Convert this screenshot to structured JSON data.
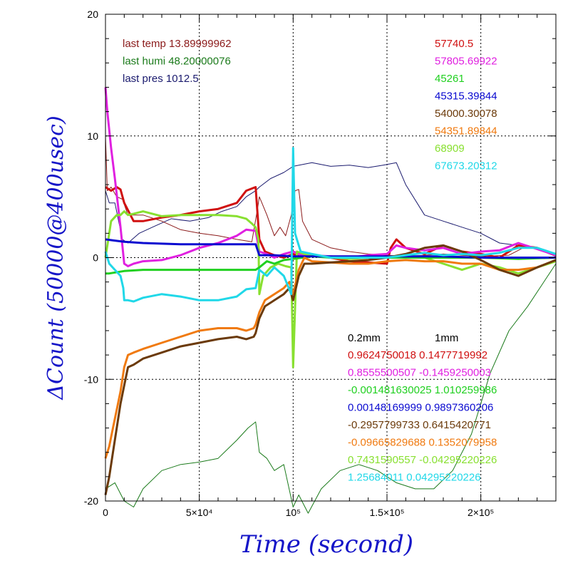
{
  "chart_data": {
    "type": "line",
    "xlabel": "Time (second)",
    "ylabel": "ΔCount (50000@400usec)",
    "xlim": [
      0,
      240000
    ],
    "ylim": [
      -20,
      20
    ],
    "x_ticks": [
      {
        "value": 0,
        "label": "0"
      },
      {
        "value": 50000,
        "label": "5×10⁴"
      },
      {
        "value": 100000,
        "label": "10⁵"
      },
      {
        "value": 150000,
        "label": "1.5×10⁵"
      },
      {
        "value": 200000,
        "label": "2×10⁵"
      }
    ],
    "y_ticks": [
      {
        "value": 20,
        "label": "20"
      },
      {
        "value": 10,
        "label": "10"
      },
      {
        "value": 0,
        "label": "0"
      },
      {
        "value": -10,
        "label": "-10"
      },
      {
        "value": -20,
        "label": "-20"
      }
    ],
    "grid": true,
    "env_text": [
      {
        "text": "last temp 13.89999962",
        "color": "#8b1a1a"
      },
      {
        "text": "last humi 48.20000076",
        "color": "#1a7a1a"
      },
      {
        "text": "last pres 1012.5",
        "color": "#1a1a6e"
      }
    ],
    "value_labels": [
      {
        "text": "57740.5",
        "color": "#d01010"
      },
      {
        "text": "57805.69922",
        "color": "#e020e0"
      },
      {
        "text": "45261",
        "color": "#20d020"
      },
      {
        "text": "45315.39844",
        "color": "#0a0ad0"
      },
      {
        "text": "54000.30078",
        "color": "#6b3a0a"
      },
      {
        "text": "54351.89844",
        "color": "#f07a10"
      },
      {
        "text": "68909",
        "color": "#88e030"
      },
      {
        "text": "67673.20312",
        "color": "#20d8e8"
      }
    ],
    "coef_header": [
      "0.2mm",
      "1mm"
    ],
    "coefficients": [
      {
        "text": "0.9624750018 0.1477719992",
        "color": "#d01010"
      },
      {
        "text": "0.8555500507 -0.1459250003",
        "color": "#e020e0"
      },
      {
        "text": "-0.001481630025 1.010259986",
        "color": "#20d020"
      },
      {
        "text": "0.00148169999 0.9897360206",
        "color": "#0a0ad0"
      },
      {
        "text": "-0.2957799733 0.6415420771",
        "color": "#6b3a0a"
      },
      {
        "text": "-0.09665829688 0.1352079958",
        "color": "#f07a10"
      },
      {
        "text": "0.7431590557 -0.04295220226",
        "color": "#88e030"
      },
      {
        "text": "1.25684011 0.04295220226",
        "color": "#20d8e8"
      }
    ],
    "series": [
      {
        "color": "#1a1a6e",
        "width": 1,
        "x": [
          0,
          2000,
          5000,
          9000,
          12000,
          18000,
          25000,
          35000,
          45000,
          55000,
          62000,
          70000,
          75000,
          80000,
          82000,
          88000,
          95000,
          100000,
          110000,
          120000,
          130000,
          140000,
          148000,
          155000,
          160000,
          170000,
          180000,
          190000,
          200000,
          210000,
          220000,
          230000,
          240000
        ],
        "y": [
          5.5,
          4.5,
          4.5,
          1.5,
          1.2,
          2.0,
          2.5,
          3.2,
          3.0,
          3.3,
          3.8,
          4.2,
          5.0,
          5.5,
          5.8,
          6.5,
          7.0,
          7.5,
          7.8,
          7.5,
          7.6,
          7.4,
          7.6,
          7.8,
          6.0,
          3.5,
          3.0,
          2.5,
          2.0,
          1.2,
          1.0,
          0.8,
          0.2
        ]
      },
      {
        "color": "#8b1a1a",
        "width": 1,
        "x": [
          0,
          1000,
          3000,
          6000,
          9000,
          12000,
          20000,
          30000,
          40000,
          50000,
          60000,
          70000,
          78000,
          81000,
          82000,
          86000,
          90000,
          93000,
          96000,
          99000,
          101000,
          103000,
          105000,
          110000,
          120000,
          130000,
          140000,
          150000,
          160000,
          170000,
          180000,
          190000,
          200000,
          215000,
          225000,
          240000
        ],
        "y": [
          10.0,
          5.5,
          5.8,
          5.0,
          4.8,
          3.5,
          3.5,
          3.0,
          2.3,
          2.0,
          1.8,
          1.5,
          1.3,
          4.0,
          5.0,
          3.5,
          1.8,
          2.5,
          1.8,
          3.5,
          5.5,
          5.6,
          3.0,
          1.5,
          0.8,
          0.5,
          0.3,
          0.2,
          0.1,
          0.2,
          0.3,
          0.2,
          0.1,
          0.2,
          1.0,
          0.1
        ]
      },
      {
        "color": "#1a7a1a",
        "width": 1,
        "x": [
          0,
          5000,
          10000,
          15000,
          20000,
          30000,
          40000,
          50000,
          60000,
          70000,
          76000,
          80000,
          82000,
          86000,
          90000,
          95000,
          100000,
          103000,
          108000,
          115000,
          125000,
          135000,
          145000,
          155000,
          165000,
          175000,
          185000,
          195000,
          205000,
          215000,
          225000,
          240000
        ],
        "y": [
          -19.0,
          -18.5,
          -20.0,
          -20.5,
          -19.0,
          -17.5,
          -17.0,
          -16.8,
          -16.5,
          -15.0,
          -14.0,
          -13.5,
          -16.0,
          -16.5,
          -17.5,
          -17.0,
          -20.5,
          -19.5,
          -21.0,
          -19.0,
          -17.5,
          -17.0,
          -17.5,
          -18.5,
          -19.0,
          -19.0,
          -17.5,
          -14.5,
          -9.5,
          -6.0,
          -4.0,
          -0.5
        ]
      },
      {
        "color": "#d01010",
        "width": 3,
        "x": [
          0,
          3000,
          6000,
          8000,
          10000,
          15000,
          20000,
          30000,
          40000,
          50000,
          60000,
          70000,
          75000,
          80000,
          82000,
          85000,
          90000,
          95000,
          100000,
          105000,
          110000,
          120000,
          130000,
          140000,
          150000,
          152000,
          155000,
          160000,
          170000,
          180000,
          190000,
          200000,
          210000,
          220000,
          230000,
          240000
        ],
        "y": [
          5.8,
          5.5,
          5.8,
          5.6,
          4.5,
          3.0,
          3.0,
          3.3,
          3.5,
          3.8,
          4.0,
          4.5,
          5.5,
          5.8,
          1.5,
          0.5,
          0.2,
          0.0,
          0.3,
          0.0,
          0.2,
          0.0,
          -0.3,
          -0.4,
          -0.5,
          0.8,
          1.5,
          0.8,
          0.3,
          1.0,
          0.5,
          0.3,
          0.0,
          1.0,
          0.8,
          0.2
        ]
      },
      {
        "color": "#e020e0",
        "width": 3,
        "x": [
          0,
          1000,
          3000,
          5000,
          8000,
          10000,
          12000,
          15000,
          20000,
          30000,
          40000,
          50000,
          60000,
          70000,
          75000,
          80000,
          82000,
          86000,
          90000,
          95000,
          100000,
          105000,
          110000,
          120000,
          130000,
          140000,
          150000,
          155000,
          160000,
          170000,
          180000,
          190000,
          200000,
          210000,
          220000,
          230000,
          240000
        ],
        "y": [
          14.0,
          12.0,
          9.0,
          6.5,
          2.5,
          -0.5,
          -0.7,
          -0.5,
          -0.3,
          -0.2,
          0.2,
          0.8,
          1.2,
          1.8,
          2.3,
          2.2,
          0.5,
          0.3,
          0.0,
          0.3,
          0.5,
          0.2,
          0.2,
          0.1,
          0.0,
          0.2,
          0.3,
          1.0,
          0.8,
          0.6,
          0.8,
          0.3,
          0.5,
          0.6,
          1.2,
          0.7,
          0.2
        ]
      },
      {
        "color": "#88e030",
        "width": 3,
        "x": [
          0,
          3000,
          6000,
          8000,
          10000,
          12000,
          15000,
          20000,
          30000,
          40000,
          50000,
          60000,
          70000,
          75000,
          78000,
          80000,
          81500,
          82000,
          84000,
          88000,
          92000,
          96000,
          99000,
          100000,
          102000,
          106000,
          112000,
          120000,
          130000,
          140000,
          150000,
          160000,
          170000,
          180000,
          190000,
          200000,
          210000,
          220000,
          230000,
          240000
        ],
        "y": [
          0.0,
          3.0,
          3.5,
          3.5,
          3.8,
          3.5,
          3.6,
          3.8,
          3.4,
          3.5,
          3.5,
          3.5,
          3.4,
          3.2,
          2.8,
          2.5,
          1.5,
          -3.0,
          -1.5,
          -0.8,
          -0.5,
          -0.7,
          -0.8,
          -9.0,
          0.5,
          0.3,
          0.2,
          0.0,
          -0.1,
          0.0,
          0.0,
          0.2,
          0.0,
          -0.5,
          -1.0,
          -0.5,
          -0.8,
          -1.3,
          -0.8,
          -0.3
        ]
      },
      {
        "color": "#20d020",
        "width": 3,
        "x": [
          0,
          2000,
          10000,
          20000,
          40000,
          60000,
          80000,
          82000,
          86000,
          90000,
          95000,
          100000,
          110000,
          120000,
          140000,
          160000,
          180000,
          200000,
          220000,
          240000
        ],
        "y": [
          -1.3,
          -1.3,
          -1.1,
          -1.0,
          -1.0,
          -1.0,
          -1.0,
          -0.8,
          -0.3,
          -0.5,
          -0.2,
          -0.1,
          0.1,
          0.0,
          0.0,
          0.0,
          0.0,
          0.0,
          -0.1,
          0.0
        ]
      },
      {
        "color": "#0a0ad0",
        "width": 3,
        "x": [
          0,
          5000,
          10000,
          20000,
          40000,
          60000,
          80000,
          82000,
          90000,
          100000,
          120000,
          140000,
          160000,
          180000,
          200000,
          220000,
          240000
        ],
        "y": [
          1.5,
          1.4,
          1.3,
          1.2,
          1.1,
          1.1,
          1.1,
          0.2,
          0.2,
          0.1,
          0.1,
          0.1,
          0.1,
          0.1,
          0.0,
          0.0,
          0.0
        ]
      },
      {
        "color": "#f07a10",
        "width": 3,
        "x": [
          0,
          2000,
          4000,
          6000,
          8000,
          10000,
          12000,
          15000,
          20000,
          30000,
          40000,
          50000,
          60000,
          70000,
          75000,
          79000,
          80000,
          82000,
          85000,
          90000,
          95000,
          98000,
          100000,
          103000,
          106000,
          110000,
          120000,
          130000,
          140000,
          150000,
          160000,
          170000,
          180000,
          190000,
          200000,
          210000,
          220000,
          230000,
          240000
        ],
        "y": [
          -16.5,
          -15.5,
          -14.0,
          -12.5,
          -11.0,
          -9.0,
          -8.0,
          -7.8,
          -7.5,
          -7.0,
          -6.5,
          -6.0,
          -5.8,
          -5.8,
          -6.0,
          -5.8,
          -5.5,
          -4.5,
          -3.5,
          -3.0,
          -2.5,
          -2.0,
          -3.0,
          -1.0,
          0.0,
          -0.3,
          -0.4,
          -0.5,
          -0.5,
          -0.3,
          -0.2,
          -0.3,
          -0.3,
          -0.5,
          -0.5,
          -1.0,
          -1.0,
          -0.8,
          -0.2
        ]
      },
      {
        "color": "#6b3a0a",
        "width": 3,
        "x": [
          0,
          2000,
          4000,
          6000,
          8000,
          10000,
          12000,
          15000,
          20000,
          30000,
          40000,
          50000,
          60000,
          70000,
          75000,
          79000,
          80000,
          82000,
          85000,
          90000,
          95000,
          98000,
          100000,
          103000,
          106000,
          110000,
          120000,
          130000,
          140000,
          150000,
          160000,
          170000,
          180000,
          190000,
          200000,
          210000,
          220000,
          230000,
          240000
        ],
        "y": [
          -19.5,
          -18.0,
          -16.0,
          -14.0,
          -12.0,
          -10.5,
          -9.0,
          -8.8,
          -8.3,
          -7.8,
          -7.3,
          -7.0,
          -6.7,
          -6.5,
          -6.7,
          -6.5,
          -6.2,
          -5.0,
          -4.0,
          -3.5,
          -3.0,
          -2.5,
          -3.5,
          -1.5,
          -0.5,
          -0.5,
          -0.4,
          -0.3,
          -0.2,
          0.0,
          0.3,
          0.8,
          1.0,
          0.5,
          -0.2,
          -1.0,
          -1.5,
          -0.8,
          -0.2
        ]
      },
      {
        "color": "#20d8e8",
        "width": 3,
        "x": [
          0,
          2000,
          5000,
          8000,
          9500,
          10000,
          12000,
          15000,
          20000,
          30000,
          40000,
          50000,
          60000,
          70000,
          75000,
          80000,
          82000,
          86000,
          90000,
          95000,
          99000,
          100000,
          101000,
          102000,
          104000,
          110000,
          120000,
          130000,
          140000,
          150000,
          160000,
          170000,
          180000,
          190000,
          200000,
          210000,
          220000,
          230000,
          240000
        ],
        "y": [
          0.5,
          -0.5,
          -1.0,
          -1.5,
          -2.5,
          -3.5,
          -3.5,
          -3.6,
          -3.3,
          -3.0,
          -3.2,
          -3.5,
          -3.5,
          -3.2,
          -2.6,
          -2.5,
          -1.0,
          -1.5,
          -0.8,
          -1.5,
          -3.0,
          9.0,
          2.0,
          1.5,
          0.5,
          0.3,
          0.0,
          0.0,
          0.0,
          0.0,
          0.2,
          0.4,
          0.2,
          0.3,
          0.2,
          0.4,
          0.8,
          0.8,
          0.3
        ]
      }
    ]
  }
}
